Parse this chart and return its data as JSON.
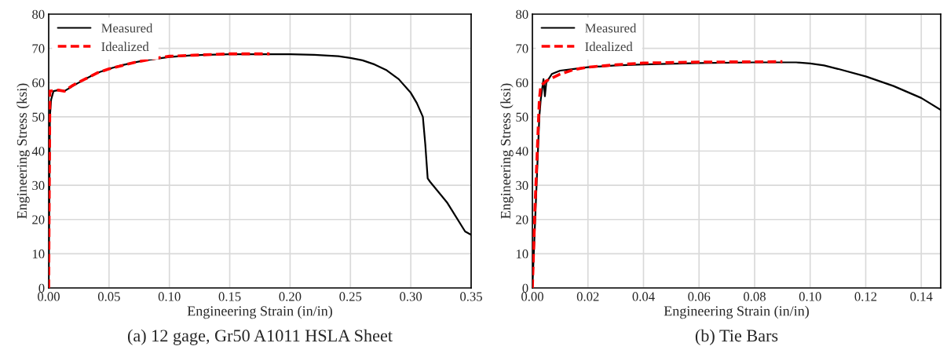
{
  "chart_data": [
    {
      "type": "line",
      "xlabel": "Engineering Strain (in/in)",
      "ylabel": "Engineering Stress (ksi)",
      "annotations": [
        "(a) 12 gage, Gr50 A1011 HSLA Sheet"
      ],
      "xlim": [
        0,
        0.35
      ],
      "ylim": [
        0,
        80
      ],
      "xticks": [
        {
          "value": 0,
          "label": "0.00"
        },
        {
          "value": 0.05,
          "label": "0.05"
        },
        {
          "value": 0.1,
          "label": "0.10"
        },
        {
          "value": 0.15,
          "label": "0.15"
        },
        {
          "value": 0.2,
          "label": "0.20"
        },
        {
          "value": 0.25,
          "label": "0.25"
        },
        {
          "value": 0.3,
          "label": "0.30"
        },
        {
          "value": 0.35,
          "label": "0.35"
        }
      ],
      "yticks": [
        0,
        10,
        20,
        30,
        40,
        50,
        60,
        70,
        80
      ],
      "grid": true,
      "legend": "top left",
      "series": [
        {
          "name": "Measured",
          "color": "#000000",
          "line_style": "solid",
          "x": [
            0,
            0.001,
            0.002,
            0.004,
            0.008,
            0.013,
            0.02,
            0.03,
            0.04,
            0.05,
            0.06,
            0.07,
            0.08,
            0.1,
            0.12,
            0.15,
            0.2,
            0.22,
            0.24,
            0.25,
            0.26,
            0.27,
            0.28,
            0.29,
            0.3,
            0.305,
            0.31,
            0.312,
            0.314,
            0.316,
            0.33,
            0.345,
            0.35
          ],
          "values": [
            0,
            50,
            55,
            57.5,
            57.8,
            57.5,
            59,
            61,
            62.8,
            64,
            65,
            65.8,
            66.5,
            67.5,
            68,
            68.3,
            68.3,
            68.1,
            67.7,
            67.2,
            66.5,
            65.3,
            63.6,
            61,
            57,
            54,
            50,
            42,
            32,
            31,
            25,
            16.5,
            15.5
          ]
        },
        {
          "name": "Idealized",
          "color": "#ff0000",
          "line_style": "dashed",
          "x": [
            0,
            0.001,
            0.008,
            0.013,
            0.02,
            0.03,
            0.04,
            0.05,
            0.07,
            0.09,
            0.1,
            0.12,
            0.15,
            0.183
          ],
          "values": [
            0,
            57.5,
            57.8,
            57.5,
            59.2,
            61,
            62.8,
            64,
            65.8,
            67.2,
            67.7,
            68,
            68.4,
            68.4
          ]
        }
      ]
    },
    {
      "type": "line",
      "xlabel": "Engineering Strain (in/in)",
      "ylabel": "Engineering Stress (ksi)",
      "annotations": [
        "(b) Tie Bars"
      ],
      "xlim": [
        0,
        0.147
      ],
      "ylim": [
        0,
        80
      ],
      "xticks": [
        {
          "value": 0,
          "label": "0.00"
        },
        {
          "value": 0.02,
          "label": "0.02"
        },
        {
          "value": 0.04,
          "label": "0.04"
        },
        {
          "value": 0.06,
          "label": "0.06"
        },
        {
          "value": 0.08,
          "label": "0.08"
        },
        {
          "value": 0.1,
          "label": "0.10"
        },
        {
          "value": 0.12,
          "label": "0.12"
        },
        {
          "value": 0.14,
          "label": "0.14"
        }
      ],
      "yticks": [
        0,
        10,
        20,
        30,
        40,
        50,
        60,
        70,
        80
      ],
      "grid": true,
      "legend": "top left",
      "series": [
        {
          "name": "Measured",
          "color": "#000000",
          "line_style": "solid",
          "x": [
            0,
            0.001,
            0.002,
            0.0025,
            0.003,
            0.0035,
            0.004,
            0.0045,
            0.005,
            0.007,
            0.01,
            0.015,
            0.02,
            0.03,
            0.04,
            0.06,
            0.08,
            0.095,
            0.1,
            0.105,
            0.11,
            0.12,
            0.13,
            0.14,
            0.147
          ],
          "values": [
            0,
            20,
            40,
            50,
            55,
            58,
            61,
            56,
            60,
            62.5,
            63.5,
            64,
            64.5,
            65,
            65.3,
            65.7,
            65.9,
            65.9,
            65.6,
            65,
            64,
            61.8,
            59,
            55.5,
            52
          ]
        },
        {
          "name": "Idealized",
          "color": "#ff0000",
          "line_style": "dashed",
          "x": [
            0,
            0.001,
            0.002,
            0.0025,
            0.003,
            0.005,
            0.01,
            0.015,
            0.02,
            0.03,
            0.04,
            0.06,
            0.09
          ],
          "values": [
            0,
            25,
            45,
            55,
            59,
            60.5,
            62.5,
            63.8,
            64.5,
            65.2,
            65.7,
            66,
            66.1
          ]
        }
      ]
    }
  ]
}
